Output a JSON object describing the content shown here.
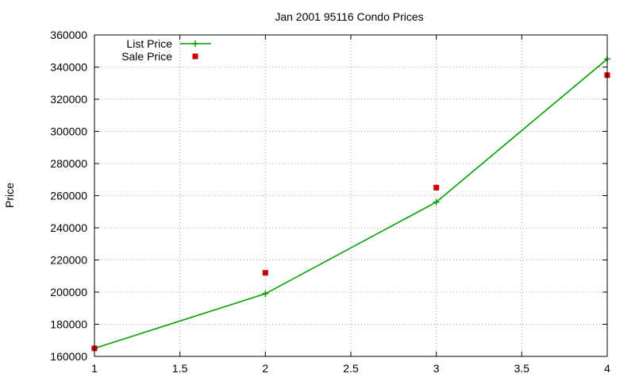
{
  "chart_data": {
    "type": "line",
    "title": "Jan 2001 95116 Condo Prices",
    "xlabel": "",
    "ylabel": "Price",
    "xlim": [
      1,
      4
    ],
    "ylim": [
      160000,
      360000
    ],
    "xticks": [
      "1",
      "1.5",
      "2",
      "2.5",
      "3",
      "3.5",
      "4"
    ],
    "yticks": [
      "160000",
      "180000",
      "200000",
      "220000",
      "240000",
      "260000",
      "280000",
      "300000",
      "320000",
      "340000",
      "360000"
    ],
    "grid": true,
    "legend_position": "top-left",
    "series": [
      {
        "name": "List Price",
        "style": "line+cross",
        "color": "#00a000",
        "x": [
          1,
          2,
          3,
          4
        ],
        "y": [
          165000,
          199000,
          256000,
          345000
        ]
      },
      {
        "name": "Sale Price",
        "style": "square",
        "color": "#cc0000",
        "x": [
          1,
          2,
          3,
          4
        ],
        "y": [
          165000,
          212000,
          265000,
          335000
        ]
      }
    ]
  }
}
